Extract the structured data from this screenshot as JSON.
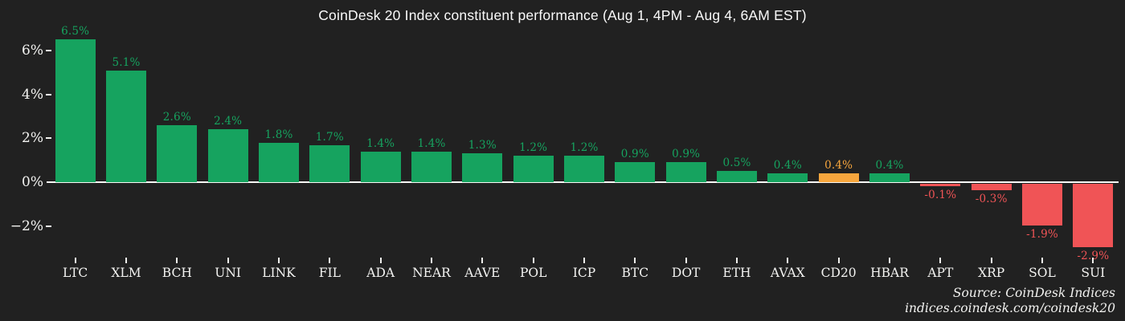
{
  "title": "CoinDesk 20 Index constituent performance (Aug 1, 4PM - Aug 4, 6AM EST)",
  "source": {
    "line1": "Source: CoinDesk Indices",
    "line2": "indices.coindesk.com/coindesk20"
  },
  "colors": {
    "background": "#212121",
    "positive": "#16a35f",
    "negative": "#f05456",
    "highlight": "#f7a63d",
    "axis_line": "#f7f7f5",
    "label_text": "#f3f3f1"
  },
  "chart_data": {
    "type": "bar",
    "title": "CoinDesk 20 Index constituent performance (Aug 1, 4PM - Aug 4, 6AM EST)",
    "xlabel": "",
    "ylabel": "",
    "grid": false,
    "legend": null,
    "ylim": [
      -3.2,
      6.9
    ],
    "categories": [
      "LTC",
      "XLM",
      "BCH",
      "UNI",
      "LINK",
      "FIL",
      "ADA",
      "NEAR",
      "AAVE",
      "POL",
      "ICP",
      "BTC",
      "DOT",
      "ETH",
      "AVAX",
      "CD20",
      "HBAR",
      "APT",
      "XRP",
      "SOL",
      "SUI"
    ],
    "values": [
      6.5,
      5.1,
      2.6,
      2.4,
      1.8,
      1.7,
      1.4,
      1.4,
      1.3,
      1.2,
      1.2,
      0.9,
      0.9,
      0.5,
      0.4,
      0.4,
      0.4,
      -0.1,
      -0.3,
      -1.9,
      -2.9
    ],
    "value_labels": [
      "6.5%",
      "5.1%",
      "2.6%",
      "2.4%",
      "1.8%",
      "1.7%",
      "1.4%",
      "1.4%",
      "1.3%",
      "1.2%",
      "1.2%",
      "0.9%",
      "0.9%",
      "0.5%",
      "0.4%",
      "0.4%",
      "0.4%",
      "-0.1%",
      "-0.3%",
      "-1.9%",
      "-2.9%"
    ],
    "bar_colors": [
      "positive",
      "positive",
      "positive",
      "positive",
      "positive",
      "positive",
      "positive",
      "positive",
      "positive",
      "positive",
      "positive",
      "positive",
      "positive",
      "positive",
      "positive",
      "highlight",
      "positive",
      "negative",
      "negative",
      "negative",
      "negative"
    ],
    "yticks": [
      {
        "label": "6%",
        "value": 6
      },
      {
        "label": "4%",
        "value": 4
      },
      {
        "label": "2%",
        "value": 2
      },
      {
        "label": "0%",
        "value": 0
      },
      {
        "label": "−2%",
        "value": -2
      }
    ]
  }
}
